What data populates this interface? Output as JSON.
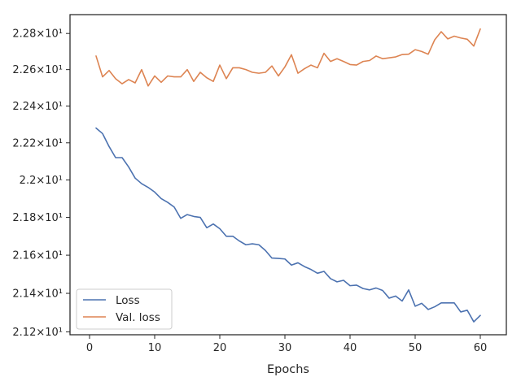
{
  "chart_data": {
    "type": "line",
    "title": "",
    "xlabel": "Epochs",
    "ylabel": "",
    "xlim": [
      -3,
      64
    ],
    "ylim": [
      21.185,
      22.905
    ],
    "x_ticks": [
      0,
      10,
      20,
      30,
      40,
      50,
      60
    ],
    "x_tick_labels": [
      "0",
      "10",
      "20",
      "30",
      "40",
      "50",
      "60"
    ],
    "y_ticks": [
      21.2,
      21.4,
      21.6,
      21.8,
      22.0,
      22.2,
      22.4,
      22.6,
      22.8
    ],
    "y_tick_labels": [
      "2.12×10¹",
      "2.14×10¹",
      "2.16×10¹",
      "2.18×10¹",
      "2.2×10¹",
      "2.22×10¹",
      "2.24×10¹",
      "2.26×10¹",
      "2.28×10¹"
    ],
    "y_scale": "log",
    "grid": false,
    "legend_position": "lower-left",
    "series": [
      {
        "name": "Loss",
        "color": "#4c72b0",
        "x": [
          1,
          2,
          3,
          4,
          5,
          6,
          7,
          8,
          9,
          10,
          11,
          12,
          13,
          14,
          15,
          16,
          17,
          18,
          19,
          20,
          21,
          22,
          23,
          24,
          25,
          26,
          27,
          28,
          29,
          30,
          31,
          32,
          33,
          34,
          35,
          36,
          37,
          38,
          39,
          40,
          41,
          42,
          43,
          44,
          45,
          46,
          47,
          48,
          49,
          50,
          51,
          52,
          53,
          54,
          55,
          56,
          57,
          58,
          59,
          60
        ],
        "values": [
          22.28,
          22.25,
          22.18,
          22.12,
          22.12,
          22.07,
          22.01,
          21.98,
          21.96,
          21.935,
          21.9,
          21.88,
          21.855,
          21.795,
          21.815,
          21.805,
          21.8,
          21.745,
          21.765,
          21.74,
          21.7,
          21.7,
          21.675,
          21.655,
          21.66,
          21.655,
          21.625,
          21.585,
          21.583,
          21.58,
          21.548,
          21.56,
          21.54,
          21.525,
          21.505,
          21.515,
          21.477,
          21.46,
          21.468,
          21.44,
          21.443,
          21.425,
          21.418,
          21.428,
          21.415,
          21.375,
          21.386,
          21.36,
          21.418,
          21.333,
          21.348,
          21.316,
          21.33,
          21.35,
          21.35,
          21.35,
          21.303,
          21.312,
          21.252,
          21.285
        ]
      },
      {
        "name": "Val. loss",
        "color": "#dd8452",
        "x": [
          1,
          2,
          3,
          4,
          5,
          6,
          7,
          8,
          9,
          10,
          11,
          12,
          13,
          14,
          15,
          16,
          17,
          18,
          19,
          20,
          21,
          22,
          23,
          24,
          25,
          26,
          27,
          28,
          29,
          30,
          31,
          32,
          33,
          34,
          35,
          36,
          37,
          38,
          39,
          40,
          41,
          42,
          43,
          44,
          45,
          46,
          47,
          48,
          49,
          50,
          51,
          52,
          53,
          54,
          55,
          56,
          57,
          58,
          59,
          60
        ],
        "values": [
          22.675,
          22.56,
          22.595,
          22.55,
          22.522,
          22.545,
          22.527,
          22.6,
          22.51,
          22.565,
          22.53,
          22.565,
          22.56,
          22.56,
          22.6,
          22.535,
          22.585,
          22.555,
          22.535,
          22.625,
          22.55,
          22.61,
          22.61,
          22.6,
          22.585,
          22.58,
          22.585,
          22.62,
          22.565,
          22.615,
          22.682,
          22.58,
          22.605,
          22.625,
          22.61,
          22.69,
          22.645,
          22.66,
          22.645,
          22.628,
          22.625,
          22.645,
          22.65,
          22.675,
          22.66,
          22.665,
          22.67,
          22.683,
          22.685,
          22.71,
          22.7,
          22.685,
          22.765,
          22.81,
          22.77,
          22.785,
          22.775,
          22.768,
          22.73,
          22.825
        ]
      }
    ]
  }
}
